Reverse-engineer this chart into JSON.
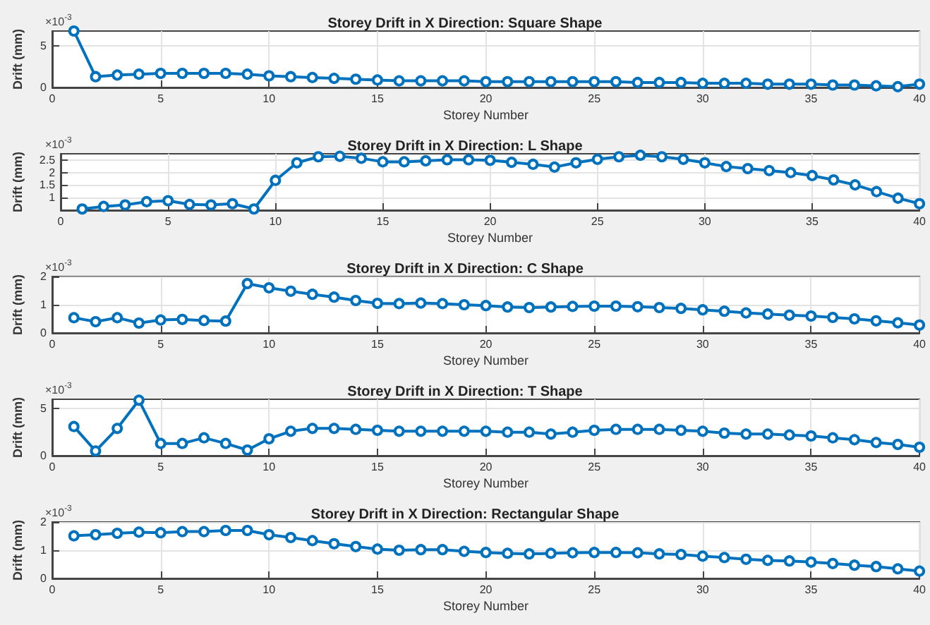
{
  "chart_data": [
    {
      "type": "line",
      "title": "Storey Drift in X Direction: Square Shape",
      "xlabel": "Storey Number",
      "ylabel": "Drift (mm)",
      "annotations": [
        "×10$^{-3}$"
      ],
      "x": [
        1,
        2,
        3,
        4,
        5,
        6,
        7,
        8,
        9,
        10,
        11,
        12,
        13,
        14,
        15,
        16,
        17,
        18,
        19,
        20,
        21,
        22,
        23,
        24,
        25,
        26,
        27,
        28,
        29,
        30,
        31,
        32,
        33,
        34,
        35,
        36,
        37,
        38,
        39,
        40
      ],
      "series": [
        {
          "color": "#0072bd",
          "values": [
            6.8,
            1.3,
            1.5,
            1.6,
            1.7,
            1.7,
            1.7,
            1.7,
            1.6,
            1.4,
            1.3,
            1.2,
            1.1,
            1.0,
            0.9,
            0.8,
            0.8,
            0.8,
            0.8,
            0.7,
            0.7,
            0.7,
            0.7,
            0.7,
            0.7,
            0.7,
            0.6,
            0.6,
            0.6,
            0.5,
            0.5,
            0.5,
            0.4,
            0.4,
            0.4,
            0.3,
            0.3,
            0.2,
            0.1,
            0.4
          ]
        }
      ],
      "xlim": [
        0,
        40
      ],
      "xticks": [
        0,
        5,
        10,
        15,
        20,
        25,
        30,
        35,
        40
      ],
      "ylim": [
        0,
        6.8
      ],
      "yticks": [
        0,
        5
      ],
      "grid": true,
      "marker": "circle",
      "line_style": "solid"
    },
    {
      "type": "line",
      "title": "Storey Drift in X Direction: L Shape",
      "xlabel": "Storey Number",
      "ylabel": "Drift (mm)",
      "annotations": [
        "×10$^{-3}$"
      ],
      "x": [
        1,
        2,
        3,
        4,
        5,
        6,
        7,
        8,
        9,
        10,
        11,
        12,
        13,
        14,
        15,
        16,
        17,
        18,
        19,
        20,
        21,
        22,
        23,
        24,
        25,
        26,
        27,
        28,
        29,
        30,
        31,
        32,
        33,
        34,
        35,
        36,
        37,
        38,
        39,
        40
      ],
      "series": [
        {
          "color": "#0072bd",
          "values": [
            0.55,
            0.65,
            0.71,
            0.84,
            0.88,
            0.73,
            0.71,
            0.76,
            0.55,
            1.69,
            2.39,
            2.63,
            2.65,
            2.57,
            2.43,
            2.43,
            2.47,
            2.51,
            2.51,
            2.49,
            2.41,
            2.33,
            2.22,
            2.39,
            2.53,
            2.63,
            2.69,
            2.63,
            2.53,
            2.39,
            2.24,
            2.16,
            2.08,
            2.0,
            1.88,
            1.71,
            1.51,
            1.24,
            0.98,
            0.76
          ]
        }
      ],
      "xlim": [
        0,
        40
      ],
      "xticks": [
        0,
        5,
        10,
        15,
        20,
        25,
        30,
        35,
        40
      ],
      "ylim": [
        0.5,
        2.75
      ],
      "yticks": [
        1,
        1.5,
        2,
        2.5
      ],
      "grid": true,
      "marker": "circle",
      "line_style": "solid"
    },
    {
      "type": "line",
      "title": "Storey Drift in X Direction: C Shape",
      "xlabel": "Storey Number",
      "ylabel": "Drift (mm)",
      "annotations": [
        "×10$^{-3}$"
      ],
      "x": [
        1,
        2,
        3,
        4,
        5,
        6,
        7,
        8,
        9,
        10,
        11,
        12,
        13,
        14,
        15,
        16,
        17,
        18,
        19,
        20,
        21,
        22,
        23,
        24,
        25,
        26,
        27,
        28,
        29,
        30,
        31,
        32,
        33,
        34,
        35,
        36,
        37,
        38,
        39,
        40
      ],
      "series": [
        {
          "color": "#0072bd",
          "values": [
            0.54,
            0.4,
            0.54,
            0.35,
            0.46,
            0.48,
            0.44,
            0.42,
            1.75,
            1.6,
            1.48,
            1.37,
            1.27,
            1.15,
            1.05,
            1.04,
            1.06,
            1.04,
            1.0,
            0.97,
            0.92,
            0.9,
            0.92,
            0.94,
            0.95,
            0.95,
            0.93,
            0.9,
            0.87,
            0.82,
            0.77,
            0.71,
            0.67,
            0.63,
            0.6,
            0.55,
            0.5,
            0.43,
            0.36,
            0.28
          ]
        }
      ],
      "xlim": [
        0,
        40
      ],
      "xticks": [
        0,
        5,
        10,
        15,
        20,
        25,
        30,
        35,
        40
      ],
      "ylim": [
        0,
        2
      ],
      "yticks": [
        0,
        1,
        2
      ],
      "grid": true,
      "marker": "circle",
      "line_style": "solid"
    },
    {
      "type": "line",
      "title": "Storey Drift in X Direction: T Shape",
      "xlabel": "Storey Number",
      "ylabel": "Drift (mm)",
      "annotations": [
        "×10$^{-3}$"
      ],
      "x": [
        1,
        2,
        3,
        4,
        5,
        6,
        7,
        8,
        9,
        10,
        11,
        12,
        13,
        14,
        15,
        16,
        17,
        18,
        19,
        20,
        21,
        22,
        23,
        24,
        25,
        26,
        27,
        28,
        29,
        30,
        31,
        32,
        33,
        34,
        35,
        36,
        37,
        38,
        39,
        40
      ],
      "series": [
        {
          "color": "#0072bd",
          "values": [
            3.1,
            0.5,
            2.9,
            5.9,
            1.3,
            1.3,
            1.9,
            1.3,
            0.6,
            1.8,
            2.6,
            2.9,
            2.9,
            2.8,
            2.7,
            2.6,
            2.6,
            2.6,
            2.6,
            2.6,
            2.5,
            2.5,
            2.3,
            2.5,
            2.7,
            2.8,
            2.8,
            2.8,
            2.7,
            2.6,
            2.4,
            2.3,
            2.3,
            2.2,
            2.1,
            1.9,
            1.7,
            1.4,
            1.2,
            0.9
          ]
        }
      ],
      "xlim": [
        0,
        40
      ],
      "xticks": [
        0,
        5,
        10,
        15,
        20,
        25,
        30,
        35,
        40
      ],
      "ylim": [
        0,
        6
      ],
      "yticks": [
        0,
        5
      ],
      "grid": true,
      "marker": "circle",
      "line_style": "solid"
    },
    {
      "type": "line",
      "title": "Storey Drift in X Direction: Rectangular Shape",
      "xlabel": "Storey Number",
      "ylabel": "Drift (mm)",
      "annotations": [
        "×10$^{-3}$"
      ],
      "x": [
        1,
        2,
        3,
        4,
        5,
        6,
        7,
        8,
        9,
        10,
        11,
        12,
        13,
        14,
        15,
        16,
        17,
        18,
        19,
        20,
        21,
        22,
        23,
        24,
        25,
        26,
        27,
        28,
        29,
        30,
        31,
        32,
        33,
        34,
        35,
        36,
        37,
        38,
        39,
        40
      ],
      "series": [
        {
          "color": "#0072bd",
          "values": [
            1.51,
            1.55,
            1.6,
            1.64,
            1.62,
            1.66,
            1.66,
            1.7,
            1.7,
            1.55,
            1.45,
            1.34,
            1.23,
            1.13,
            1.04,
            1.0,
            1.02,
            1.02,
            0.96,
            0.92,
            0.89,
            0.87,
            0.89,
            0.91,
            0.92,
            0.92,
            0.91,
            0.87,
            0.85,
            0.79,
            0.74,
            0.68,
            0.64,
            0.62,
            0.58,
            0.53,
            0.47,
            0.42,
            0.34,
            0.26
          ]
        }
      ],
      "xlim": [
        0,
        40
      ],
      "xticks": [
        0,
        5,
        10,
        15,
        20,
        25,
        30,
        35,
        40
      ],
      "ylim": [
        0,
        2
      ],
      "yticks": [
        0,
        1,
        2
      ],
      "grid": true,
      "marker": "circle",
      "line_style": "solid"
    }
  ]
}
